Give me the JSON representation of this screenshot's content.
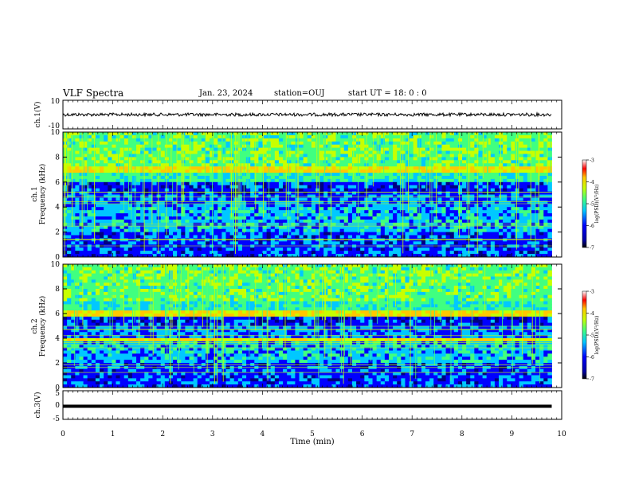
{
  "header": {
    "title": "VLF Spectra",
    "date": "Jan. 23, 2024",
    "station": "station=OUJ",
    "start_ut": "start  UT =  18: 0  : 0"
  },
  "chart_data": [
    {
      "type": "line",
      "panel": "channel-1-waveform",
      "ylabel": "ch.1(V)",
      "ytick_labels": [
        "10",
        "-10"
      ],
      "ylim": [
        -10,
        10
      ],
      "x": [
        0,
        9.8
      ],
      "series": [
        {
          "values": [
            0,
            0
          ]
        }
      ]
    },
    {
      "type": "heatmap",
      "panel": "channel-1-spectrogram",
      "ylabel": "ch.1\nFrequency (kHz)",
      "ylim": [
        0,
        10
      ],
      "ytick_labels": [
        "0",
        "2",
        "4",
        "6",
        "8",
        "10"
      ],
      "colorbar": {
        "label": "log(PSD)(V²/Hz)",
        "range": [
          -7,
          -3
        ],
        "tick_labels": [
          "-3",
          "-4",
          "-5",
          "-6",
          "-7"
        ]
      },
      "colors": [
        "#000080",
        "#0000ff",
        "#00c8ff",
        "#40ff80",
        "#c8ff00",
        "#ffc800",
        "#ff0000",
        "#ffffff"
      ]
    },
    {
      "type": "heatmap",
      "panel": "channel-2-spectrogram",
      "ylabel": "ch.2\nFrequency (kHz)",
      "ylim": [
        0,
        10
      ],
      "ytick_labels": [
        "0",
        "2",
        "4",
        "6",
        "8",
        "10"
      ],
      "colorbar": {
        "label": "log(PSD)(V²/Hz)",
        "range": [
          -7,
          -3
        ],
        "tick_labels": [
          "-3",
          "-4",
          "-5",
          "-6",
          "-7"
        ]
      },
      "colors": [
        "#000080",
        "#0000ff",
        "#00c8ff",
        "#40ff80",
        "#c8ff00",
        "#ffc800",
        "#ff0000",
        "#ffffff"
      ]
    },
    {
      "type": "line",
      "panel": "channel-3-waveform",
      "ylabel": "ch.3(V)",
      "ytick_labels": [
        "5",
        "0",
        "-5"
      ],
      "ylim": [
        -5,
        5
      ],
      "x": [
        0,
        9.8
      ],
      "series": [
        {
          "values": [
            -0.4,
            -0.4
          ]
        }
      ]
    }
  ],
  "xaxis": {
    "label": "Time (min)",
    "xlim": [
      0,
      10
    ],
    "tick_labels": [
      "0",
      "1",
      "2",
      "3",
      "4",
      "5",
      "6",
      "7",
      "8",
      "9",
      "10"
    ]
  }
}
